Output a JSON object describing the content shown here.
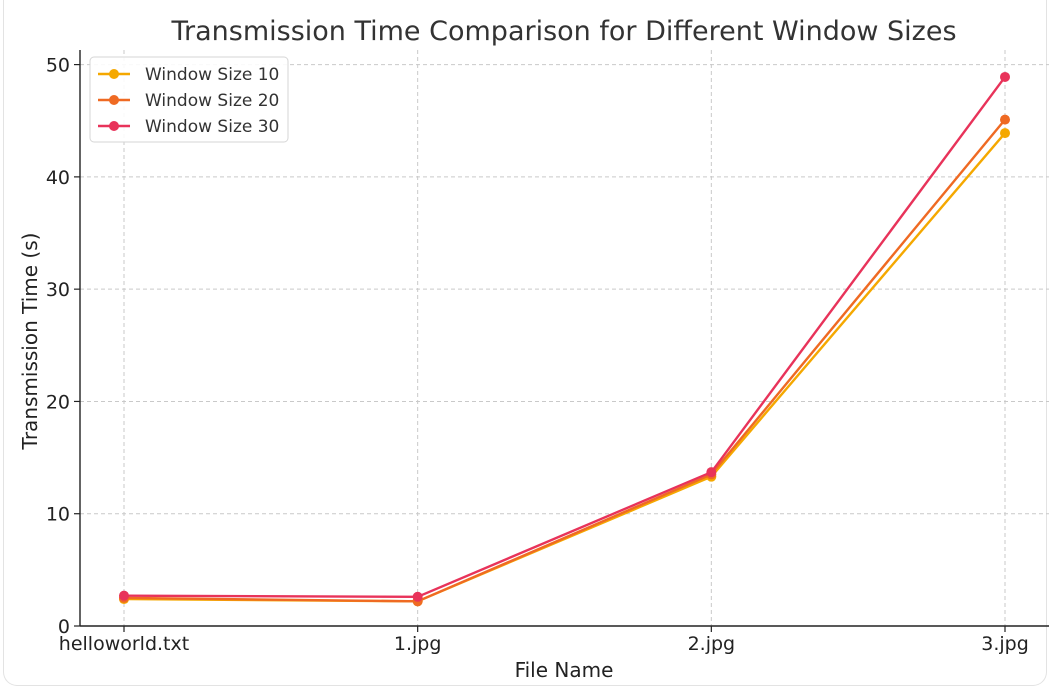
{
  "chart_data": {
    "type": "line",
    "title": "Transmission Time Comparison for Different Window Sizes",
    "xlabel": "File Name",
    "ylabel": "Transmission Time (s)",
    "categories": [
      "helloworld.txt",
      "1.jpg",
      "2.jpg",
      "3.jpg"
    ],
    "ylim": [
      0,
      51.3
    ],
    "yticks": [
      0,
      10,
      20,
      30,
      40,
      50
    ],
    "grid": true,
    "legend_position": "top-left",
    "series": [
      {
        "name": "Window Size 10",
        "color": "#f5a800",
        "values": [
          2.4,
          2.2,
          13.3,
          43.9
        ]
      },
      {
        "name": "Window Size 20",
        "color": "#ef6a23",
        "values": [
          2.5,
          2.2,
          13.5,
          45.1
        ]
      },
      {
        "name": "Window Size 30",
        "color": "#e8335a",
        "values": [
          2.7,
          2.6,
          13.7,
          48.9
        ]
      }
    ]
  }
}
